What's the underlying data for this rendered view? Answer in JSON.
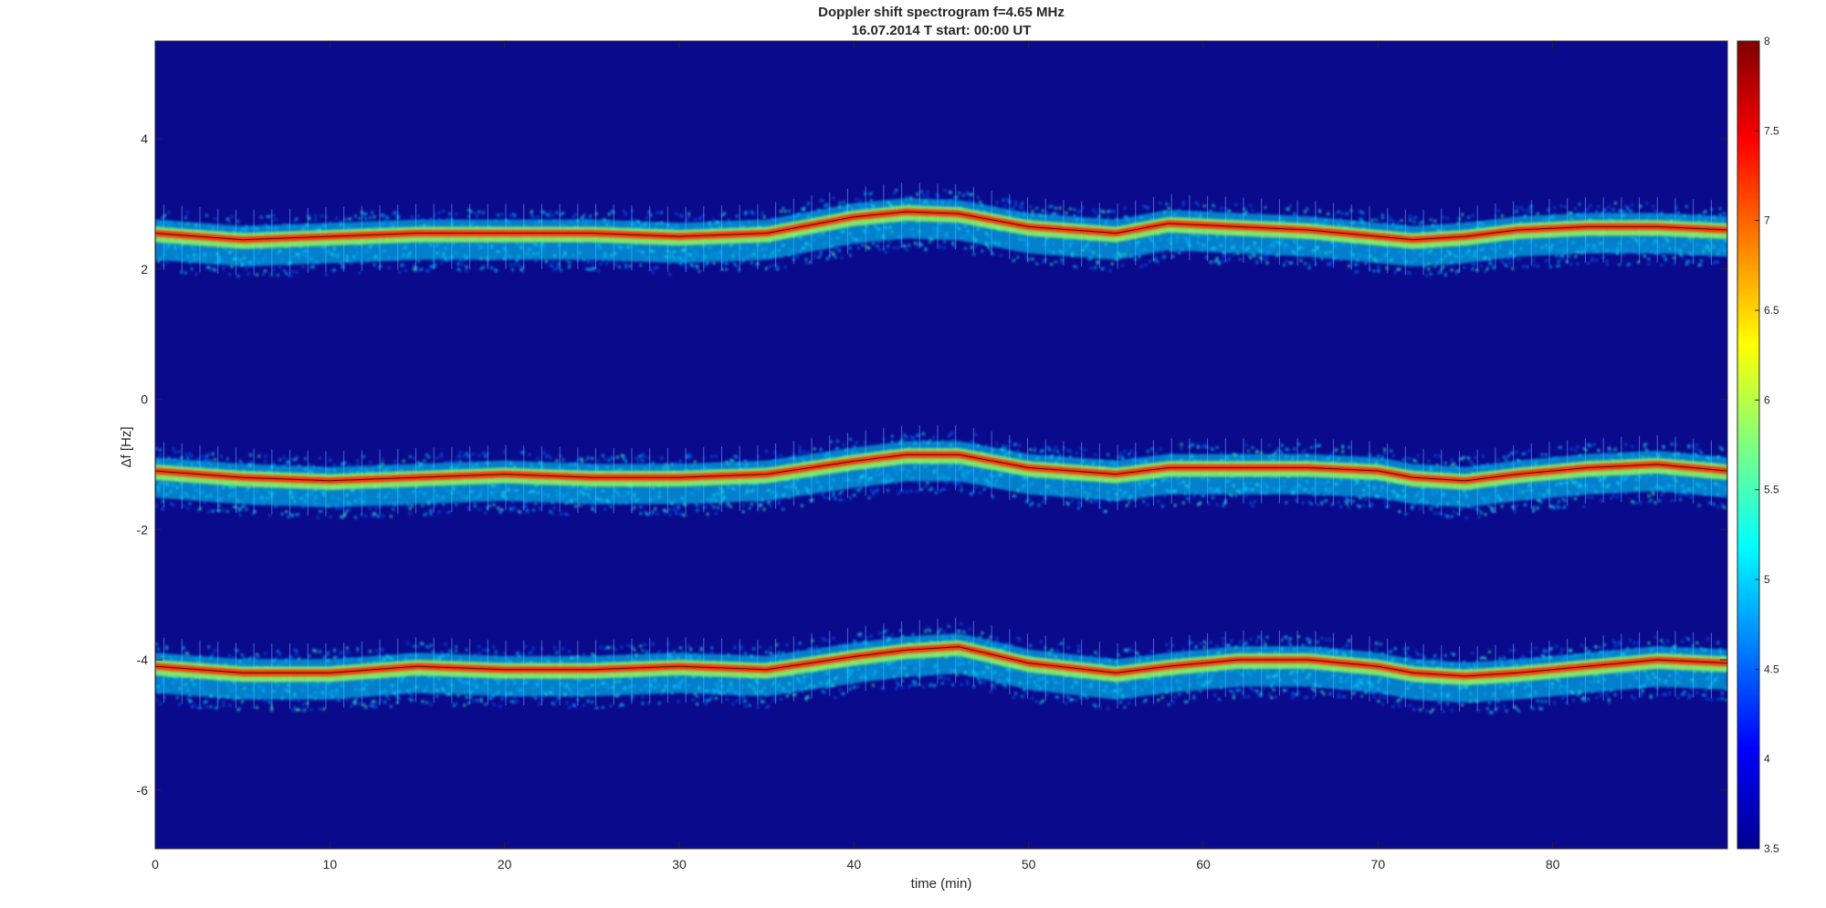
{
  "chart_data": {
    "type": "heatmap",
    "title": "Doppler shift spectrogram f=4.65 MHz",
    "subtitle": "16.07.2014   T start: 00:00 UT",
    "xlabel": "time (min)",
    "ylabel": "Δf [Hz]",
    "xlim": [
      0,
      90
    ],
    "ylim": [
      -6.9,
      5.5
    ],
    "x_ticks": [
      0,
      10,
      20,
      30,
      40,
      50,
      60,
      70,
      80
    ],
    "y_ticks": [
      -6,
      -4,
      -2,
      0,
      2,
      4
    ],
    "colorbar": {
      "colormap": "jet",
      "range": [
        3.5,
        8
      ],
      "ticks": [
        3.5,
        4,
        4.5,
        5,
        5.5,
        6,
        6.5,
        7,
        7.5,
        8
      ]
    },
    "background_color": "#0a0a8c",
    "traces": [
      {
        "x": [
          0,
          5,
          10,
          15,
          20,
          25,
          30,
          35,
          40,
          43,
          46,
          50,
          55,
          58,
          62,
          66,
          70,
          72,
          75,
          78,
          82,
          86,
          90
        ],
        "delta_f": [
          2.55,
          2.45,
          2.5,
          2.55,
          2.55,
          2.55,
          2.5,
          2.55,
          2.8,
          2.88,
          2.85,
          2.65,
          2.55,
          2.7,
          2.65,
          2.6,
          2.5,
          2.45,
          2.5,
          2.6,
          2.65,
          2.65,
          2.6
        ]
      },
      {
        "x": [
          0,
          5,
          10,
          15,
          20,
          25,
          30,
          35,
          40,
          43,
          46,
          50,
          55,
          58,
          62,
          66,
          70,
          72,
          75,
          78,
          82,
          86,
          90
        ],
        "delta_f": [
          -1.1,
          -1.2,
          -1.25,
          -1.2,
          -1.15,
          -1.2,
          -1.2,
          -1.15,
          -0.95,
          -0.85,
          -0.85,
          -1.05,
          -1.15,
          -1.05,
          -1.05,
          -1.05,
          -1.1,
          -1.2,
          -1.25,
          -1.15,
          -1.05,
          -1.0,
          -1.1
        ]
      },
      {
        "x": [
          0,
          5,
          10,
          15,
          20,
          25,
          30,
          35,
          40,
          43,
          46,
          50,
          55,
          58,
          62,
          66,
          70,
          72,
          75,
          78,
          82,
          86,
          90
        ],
        "delta_f": [
          -4.1,
          -4.2,
          -4.2,
          -4.1,
          -4.15,
          -4.15,
          -4.1,
          -4.15,
          -3.95,
          -3.85,
          -3.8,
          -4.05,
          -4.2,
          -4.1,
          -4.0,
          -4.0,
          -4.1,
          -4.2,
          -4.25,
          -4.2,
          -4.1,
          -4.0,
          -4.05
        ]
      }
    ]
  }
}
